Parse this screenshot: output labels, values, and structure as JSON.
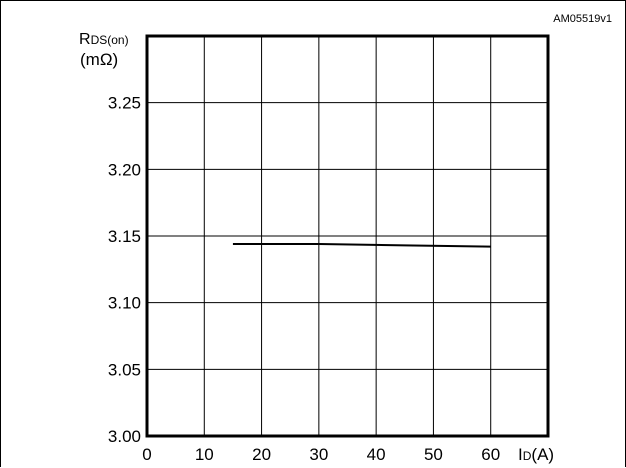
{
  "figure_code": "AM05519v1",
  "chart_data": {
    "type": "line",
    "title": "",
    "xlabel": {
      "main": "I",
      "sub": "D",
      "unit": "(A)"
    },
    "ylabel": {
      "main": "R",
      "sub": "DS(on)",
      "unit": "(mΩ)"
    },
    "xlim": [
      0,
      70
    ],
    "ylim": [
      3.0,
      3.3
    ],
    "xticks": [
      0,
      10,
      20,
      30,
      40,
      50,
      60
    ],
    "yticks": [
      3.0,
      3.05,
      3.1,
      3.15,
      3.2,
      3.25
    ],
    "ytick_labels": [
      "3.00",
      "3.05",
      "3.10",
      "3.15",
      "3.20",
      "3.25"
    ],
    "grid": true,
    "series": [
      {
        "x": [
          15,
          30,
          45,
          60
        ],
        "y": [
          3.144,
          3.144,
          3.143,
          3.142
        ]
      }
    ]
  }
}
